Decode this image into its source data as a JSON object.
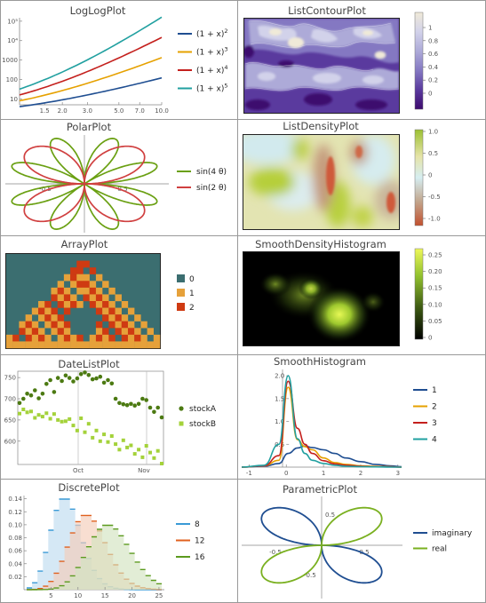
{
  "panels": [
    {
      "id": "loglog",
      "title": "LogLogPlot",
      "chart_data": {
        "type": "line",
        "scale": "log-log",
        "x_ticks": [
          "1.5",
          "2.0",
          "3.0",
          "5.0",
          "7.0",
          "10.0"
        ],
        "y_ticks": [
          "10",
          "100",
          "1000",
          "10⁴",
          "10⁵"
        ],
        "xlim": [
          1,
          10
        ],
        "ylim": [
          5,
          150000
        ],
        "series": [
          {
            "name": "(1 + x)²",
            "base": "(1 + x)",
            "exp": "2",
            "power": 2,
            "color": "#1f4e91"
          },
          {
            "name": "(1 + x)³",
            "base": "(1 + x)",
            "exp": "3",
            "power": 3,
            "color": "#e6a100"
          },
          {
            "name": "(1 + x)⁴",
            "base": "(1 + x)",
            "exp": "4",
            "power": 4,
            "color": "#c4201d"
          },
          {
            "name": "(1 + x)⁵",
            "base": "(1 + x)",
            "exp": "5",
            "power": 5,
            "color": "#21a0a0"
          }
        ]
      }
    },
    {
      "id": "listcontour",
      "title": "ListContourPlot",
      "chart_data": {
        "type": "heatmap",
        "style": "contour",
        "legend_ticks": [
          "0",
          "0.2",
          "0.4",
          "0.6",
          "0.8",
          "1"
        ],
        "colors": [
          "#3d0a6e",
          "#5a3a9e",
          "#8478c2",
          "#adaad8",
          "#d2d2ea",
          "#f0ead8"
        ]
      }
    },
    {
      "id": "polar",
      "title": "PolarPlot",
      "chart_data": {
        "type": "line",
        "style": "polar",
        "series": [
          {
            "name": "sin(4 θ)",
            "fn": "sin",
            "k": "4",
            "mult": 4,
            "color": "#6aa012"
          },
          {
            "name": "sin(2 θ)",
            "fn": "sin",
            "k": "2",
            "mult": 2,
            "color": "#d04040"
          }
        ],
        "ticks": [
          "0.5",
          "-0.5"
        ]
      }
    },
    {
      "id": "listdensity",
      "title": "ListDensityPlot",
      "chart_data": {
        "type": "heatmap",
        "style": "density",
        "legend_ticks": [
          "1.0",
          "0.5",
          "0",
          "-0.5",
          "-1.0"
        ],
        "colors": [
          "#b5cf3a",
          "#e8e2b0",
          "#d8eef0",
          "#bfa890",
          "#d25a3c"
        ]
      }
    },
    {
      "id": "array",
      "title": "ArrayPlot",
      "chart_data": {
        "type": "heatmap",
        "style": "array",
        "legend": [
          {
            "label": "0",
            "color": "#3b6e70"
          },
          {
            "label": "1",
            "color": "#e6a13a"
          },
          {
            "label": "2",
            "color": "#cf3a12"
          }
        ]
      }
    },
    {
      "id": "smoothdensity",
      "title": "SmoothDensityHistogram",
      "chart_data": {
        "type": "heatmap",
        "style": "density",
        "legend_ticks": [
          "0.25",
          "0.20",
          "0.15",
          "0.10",
          "0.05",
          "0"
        ],
        "colors": [
          "#000000",
          "#3d5a12",
          "#92c12e",
          "#e8f85a"
        ]
      }
    },
    {
      "id": "datelist",
      "title": "DateListPlot",
      "chart_data": {
        "type": "scatter",
        "x_ticks": [
          "Oct",
          "Nov"
        ],
        "y_ticks": [
          "750",
          "700",
          "650",
          "600"
        ],
        "ylim": [
          545,
          765
        ],
        "series": [
          {
            "name": "stockA",
            "color": "#4c7a12",
            "marker": "circle",
            "values": [
              690,
              700,
              712,
              708,
              720,
              701,
              712,
              735,
              744,
              716,
              749,
              742,
              755,
              749,
              741,
              748,
              758,
              762,
              756,
              746,
              748,
              752,
              738,
              744,
              736,
              700,
              690,
              687,
              685,
              688,
              684,
              688,
              700,
              697,
              679,
              669,
              679,
              656
            ]
          },
          {
            "name": "stockB",
            "color": "#a4d23a",
            "marker": "square",
            "values": [
              665,
              675,
              668,
              670,
              655,
              662,
              658,
              666,
              653,
              664,
              650,
              646,
              647,
              652,
              637,
              625,
              654,
              621,
              641,
              608,
              625,
              600,
              616,
              598,
              612,
              593,
              580,
              602,
              585,
              590,
              570,
              580,
              562,
              589,
              573,
              560,
              577,
              547
            ]
          }
        ]
      }
    },
    {
      "id": "smoothhist",
      "title": "SmoothHistogram",
      "chart_data": {
        "type": "line",
        "x_ticks": [
          "-1",
          "0",
          "1",
          "2",
          "3"
        ],
        "y_ticks": [
          "2.0",
          "1.5",
          "1.0",
          "0.5"
        ],
        "xlim": [
          -1.2,
          3.1
        ],
        "ylim": [
          0,
          2.1
        ],
        "series": [
          {
            "name": "1",
            "color": "#1f4e91",
            "values": [
              0,
              0.02,
              0.08,
              0.3,
              0.42,
              0.46,
              0.43,
              0.38,
              0.3,
              0.2,
              0.12,
              0.06,
              0.03,
              0.01
            ]
          },
          {
            "name": "2",
            "color": "#e6a100",
            "values": [
              0,
              0.03,
              0.15,
              1.75,
              0.6,
              0.45,
              0.38,
              0.2,
              0.1,
              0.06,
              0.03,
              0.02,
              0.01,
              0
            ]
          },
          {
            "name": "3",
            "color": "#c4201d",
            "values": [
              0,
              0.03,
              0.25,
              1.88,
              0.85,
              0.5,
              0.3,
              0.14,
              0.07,
              0.04,
              0.02,
              0.01,
              0.005,
              0
            ]
          },
          {
            "name": "4",
            "color": "#21a0a0",
            "values": [
              0,
              0.04,
              0.5,
              2.0,
              0.62,
              0.3,
              0.15,
              0.08,
              0.04,
              0.02,
              0.01,
              0.005,
              0,
              0
            ]
          }
        ]
      }
    },
    {
      "id": "discrete",
      "title": "DiscretePlot",
      "chart_data": {
        "type": "area",
        "style": "step",
        "x_ticks": [
          "5",
          "10",
          "15",
          "20",
          "25"
        ],
        "y_ticks": [
          "0.14",
          "0.12",
          "0.10",
          "0.08",
          "0.06",
          "0.04",
          "0.02"
        ],
        "xlim": [
          0,
          26
        ],
        "ylim": [
          0,
          0.145
        ],
        "series": [
          {
            "name": "8",
            "lambda": 8,
            "color": "#3a9ad6",
            "fill": "#bfdcef"
          },
          {
            "name": "12",
            "lambda": 12,
            "color": "#e0601e",
            "fill": "#f4cdb8"
          },
          {
            "name": "16",
            "lambda": 16,
            "color": "#5b9a1e",
            "fill": "#d2e3c0"
          }
        ]
      }
    },
    {
      "id": "parametric",
      "title": "ParametricPlot",
      "chart_data": {
        "type": "line",
        "style": "parametric",
        "ticks": [
          "0.5",
          "-0.5"
        ],
        "series": [
          {
            "name": "imaginary",
            "color": "#1f4e91"
          },
          {
            "name": "real",
            "color": "#7ab020"
          }
        ]
      }
    }
  ]
}
